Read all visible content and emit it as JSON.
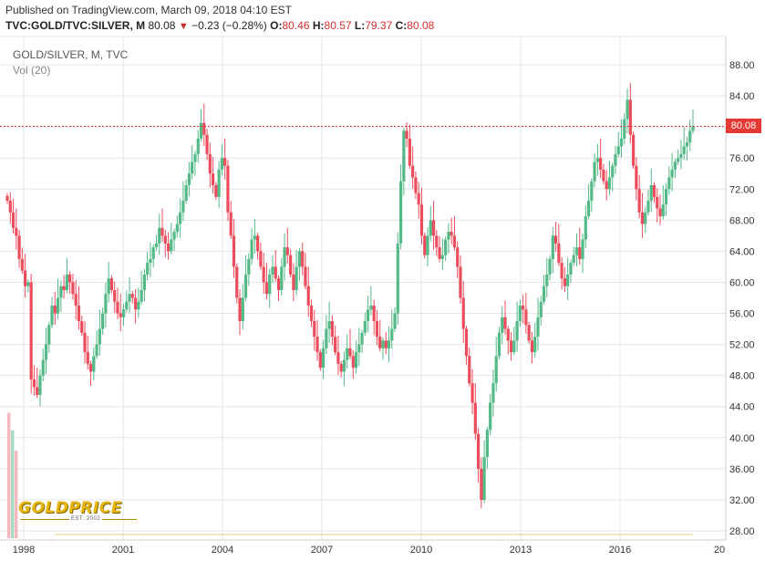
{
  "header": {
    "published": "Published on TradingView.com, March 09, 2018 04:10 EST",
    "symbol": "TVC:GOLD/TVC:SILVER, M",
    "last": "80.08",
    "change_arrow": "▼",
    "change": "−0.23 (−0.28%)",
    "o_label": "O:",
    "o_value": "80.46",
    "h_label": "H:",
    "h_value": "80.57",
    "l_label": "L:",
    "l_value": "79.37",
    "c_label": "C:",
    "c_value": "80.08"
  },
  "legend": {
    "series": "GOLD/SILVER, M, TVC",
    "volume": "Vol (20)"
  },
  "logo": {
    "text": "GOLDPRICE",
    "sub": "EST. 2002"
  },
  "price_label": "80.08",
  "colors": {
    "up": "#53b987",
    "down": "#eb4d5c",
    "price_line": "#e53935",
    "grid": "#e6e6e6",
    "volume_down": "#f4b8be",
    "volume_up": "#a8dcc2"
  },
  "chart_data": {
    "type": "candlestick",
    "y_ticks": [
      "88.00",
      "84.00",
      "80.00",
      "76.00",
      "72.00",
      "68.00",
      "64.00",
      "60.00",
      "56.00",
      "52.00",
      "48.00",
      "44.00",
      "40.00",
      "36.00",
      "32.00",
      "28.00"
    ],
    "x_ticks": [
      "1998",
      "2001",
      "2004",
      "2007",
      "2010",
      "2013",
      "2016",
      "20"
    ],
    "ylim": [
      27,
      90
    ],
    "current_price": 80.08,
    "series": [
      {
        "name": "GOLD/SILVER, M, TVC",
        "values": [
          70.5,
          69.0,
          67.0,
          66.0,
          63.0,
          61.5,
          59.5,
          60.0,
          47.5,
          46.5,
          45.5,
          48.0,
          50.0,
          52.0,
          54.5,
          57.0,
          56.0,
          58.0,
          59.5,
          59.0,
          61.0,
          60.0,
          58.5,
          57.0,
          55.0,
          53.5,
          51.0,
          49.5,
          48.5,
          50.5,
          52.0,
          54.0,
          56.0,
          58.5,
          60.5,
          59.0,
          57.5,
          56.0,
          55.5,
          56.5,
          57.5,
          58.5,
          58.0,
          56.5,
          57.5,
          59.0,
          61.0,
          62.5,
          63.0,
          64.5,
          65.0,
          67.0,
          66.0,
          65.0,
          64.0,
          65.5,
          66.5,
          67.5,
          69.0,
          70.5,
          72.5,
          74.0,
          75.5,
          76.5,
          78.5,
          80.5,
          79.0,
          76.5,
          74.0,
          72.5,
          71.0,
          74.5,
          76.0,
          75.0,
          69.0,
          66.0,
          62.0,
          58.0,
          55.0,
          58.0,
          61.0,
          63.0,
          65.5,
          66.0,
          64.0,
          62.0,
          60.0,
          58.5,
          61.0,
          62.0,
          60.5,
          59.0,
          62.0,
          64.5,
          63.5,
          61.0,
          59.0,
          62.0,
          64.0,
          62.0,
          59.5,
          57.0,
          55.0,
          53.0,
          51.0,
          49.0,
          51.5,
          54.0,
          55.0,
          53.0,
          51.0,
          49.5,
          48.5,
          50.0,
          51.5,
          50.5,
          49.0,
          51.0,
          52.0,
          53.5,
          55.0,
          56.5,
          57.0,
          55.0,
          53.0,
          51.5,
          52.5,
          51.5,
          52.5,
          54.0,
          56.0,
          65.0,
          73.0,
          79.5,
          78.5,
          75.0,
          73.5,
          71.5,
          70.0,
          66.0,
          63.5,
          66.0,
          68.0,
          66.0,
          64.5,
          63.0,
          63.5,
          65.5,
          66.5,
          66.0,
          64.5,
          62.0,
          58.0,
          54.0,
          50.5,
          47.0,
          44.5,
          40.5,
          36.0,
          32.0,
          37.5,
          41.0,
          44.5,
          47.0,
          50.5,
          53.5,
          55.5,
          54.0,
          52.5,
          51.0,
          52.5,
          55.0,
          57.0,
          56.5,
          54.5,
          52.5,
          51.0,
          53.0,
          55.5,
          57.5,
          59.5,
          61.0,
          63.0,
          66.0,
          65.0,
          62.5,
          60.5,
          59.5,
          61.0,
          62.5,
          63.5,
          64.5,
          63.0,
          65.5,
          68.5,
          70.5,
          73.0,
          75.5,
          76.0,
          74.5,
          73.0,
          72.0,
          73.5,
          75.0,
          76.5,
          77.5,
          78.5,
          81.0,
          83.5,
          79.0,
          75.0,
          72.0,
          69.0,
          67.5,
          69.0,
          70.5,
          72.5,
          71.0,
          69.5,
          68.5,
          70.0,
          72.0,
          73.5,
          74.5,
          75.5,
          76.0,
          76.5,
          77.5,
          78.0,
          79.5,
          80.08
        ]
      }
    ],
    "volume": {
      "name": "Vol (20)",
      "values": [
        43.0,
        37.0,
        30.0
      ]
    }
  }
}
